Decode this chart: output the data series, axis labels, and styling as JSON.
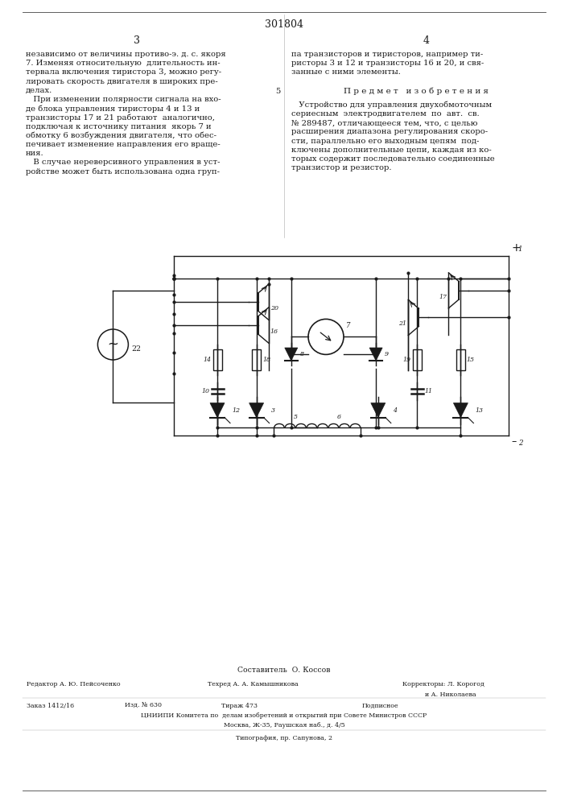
{
  "page_number": "301804",
  "col_left_number": "3",
  "col_right_number": "4",
  "background": "#ffffff",
  "text_color": "#1a1a1a",
  "body_font_size": 7.2,
  "left_col_text": [
    "независимо от величины противо-э. д. с. якоря",
    "7. Изменяя относительную  длительность ин-",
    "тервала включения тиристора 3, можно регу-",
    "лировать скорость двигателя в широких пре-",
    "делах.",
    "   При изменении полярности сигнала на вхо-",
    "де блока управления тиристоры 4 и 13 и",
    "транзисторы 17 и 21 работают  аналогично,",
    "подключая к источнику питания  якорь 7 и",
    "обмотку 6 возбуждения двигателя, что обес-",
    "печивает изменение направления его враще-",
    "ния.",
    "   В случае нереверсивного управления в уст-",
    "ройстве может быть использована одна груп-"
  ],
  "right_intro_text": [
    "па транзисторов и тиристоров, например ти-",
    "ристоры 3 и 12 и транзисторы 16 и 20, и свя-",
    "занные с ними элементы."
  ],
  "section_num": "5",
  "section_title": "П р е д м е т   и з о б р е т е н и я",
  "right_body_text": [
    "   Устройство для управления двухобмоточным",
    "сериесным  электродвигателем  по  авт.  св.",
    "№ 289487, отличающееся тем, что, с целью",
    "расширения диапазона регулирования скоро-",
    "сти, параллельно его выходным цепям  под-",
    "ключены дополнительные цепи, каждая из ко-",
    "торых содержит последовательно соединенные",
    "транзистор и резистор."
  ],
  "footer_composer": "Составитель  О. Коссов",
  "footer_editor": "Редактор А. Ю. Пейсоченко",
  "footer_techred": "Техред А. А. Камышникова",
  "footer_correctors1": "Корректоры: Л. Корогод",
  "footer_correctors2": "и А. Николаева",
  "footer_order": "Заказ 1412/16",
  "footer_pub": "Изд. № 630",
  "footer_print": "Тираж 473",
  "footer_subscr": "Подписное",
  "footer_org": "ЦНИИПИ Комитета по  делам изобретений и открытий при Совете Министров СССР",
  "footer_addr": "Москва, Ж-35, Раушская наб., д. 4/5",
  "footer_typo": "Типография, пр. Сапунова, 2"
}
